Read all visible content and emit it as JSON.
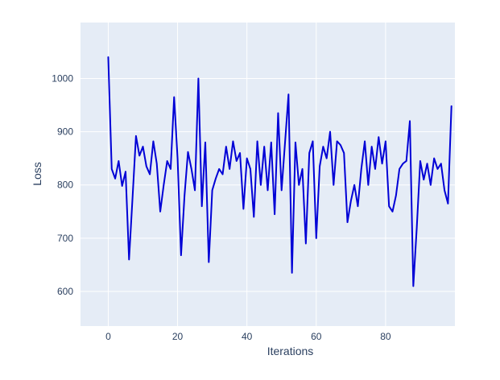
{
  "chart_data": {
    "type": "line",
    "title": "",
    "xlabel": "Iterations",
    "ylabel": "Loss",
    "x": [
      0,
      1,
      2,
      3,
      4,
      5,
      6,
      7,
      8,
      9,
      10,
      11,
      12,
      13,
      14,
      15,
      16,
      17,
      18,
      19,
      20,
      21,
      22,
      23,
      24,
      25,
      26,
      27,
      28,
      29,
      30,
      31,
      32,
      33,
      34,
      35,
      36,
      37,
      38,
      39,
      40,
      41,
      42,
      43,
      44,
      45,
      46,
      47,
      48,
      49,
      50,
      51,
      52,
      53,
      54,
      55,
      56,
      57,
      58,
      59,
      60,
      61,
      62,
      63,
      64,
      65,
      66,
      67,
      68,
      69,
      70,
      71,
      72,
      73,
      74,
      75,
      76,
      77,
      78,
      79,
      80,
      81,
      82,
      83,
      84,
      85,
      86,
      87,
      88,
      89,
      90,
      91,
      92,
      93,
      94,
      95,
      96,
      97,
      98,
      99
    ],
    "y": [
      1040,
      830,
      812,
      845,
      798,
      825,
      660,
      775,
      892,
      855,
      872,
      835,
      820,
      882,
      840,
      750,
      800,
      845,
      830,
      965,
      850,
      668,
      780,
      862,
      830,
      790,
      1000,
      760,
      880,
      655,
      790,
      812,
      830,
      820,
      872,
      830,
      882,
      845,
      860,
      755,
      850,
      830,
      740,
      882,
      800,
      872,
      790,
      880,
      745,
      935,
      790,
      880,
      970,
      635,
      880,
      800,
      830,
      690,
      860,
      882,
      700,
      835,
      872,
      850,
      900,
      800,
      882,
      875,
      860,
      730,
      770,
      800,
      760,
      830,
      882,
      800,
      872,
      830,
      890,
      840,
      882,
      760,
      750,
      780,
      830,
      840,
      845,
      920,
      610,
      720,
      845,
      810,
      840,
      800,
      850,
      830,
      840,
      790,
      765,
      948
    ],
    "xlim": [
      -8,
      100
    ],
    "ylim": [
      535,
      1105
    ],
    "xticks": [
      0,
      20,
      40,
      60,
      80
    ],
    "yticks": [
      600,
      700,
      800,
      900,
      1000
    ],
    "grid": true,
    "legend_position": "none",
    "colors": {
      "line": "#0000d6",
      "plot_background": "#e5ecf6",
      "grid": "#ffffff",
      "paper_background": "#ffffff",
      "tick_label": "#2a3f5f"
    }
  }
}
